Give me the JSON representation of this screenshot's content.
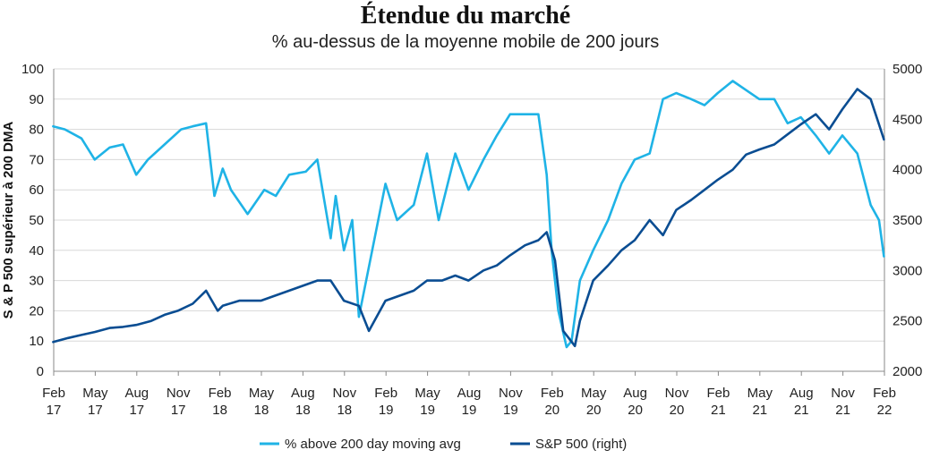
{
  "chart_data": {
    "type": "line",
    "title": "Étendue du marché",
    "subtitle": "% au-dessus de la moyenne mobile de 200 jours",
    "ylabel_left": "S & P 500 supérieur à 200 DMA",
    "ylim_left": [
      0,
      100
    ],
    "yticks_left": [
      "0",
      "10",
      "20",
      "30",
      "40",
      "50",
      "60",
      "70",
      "80",
      "90",
      "100"
    ],
    "ylim_right": [
      2000,
      5000
    ],
    "yticks_right": [
      "2000",
      "2500",
      "3000",
      "3500",
      "4000",
      "4500",
      "5000"
    ],
    "xlim": [
      2017.083,
      2022.083
    ],
    "xticks": [
      {
        "month": "Feb",
        "year": "17"
      },
      {
        "month": "May",
        "year": "17"
      },
      {
        "month": "Aug",
        "year": "17"
      },
      {
        "month": "Nov",
        "year": "17"
      },
      {
        "month": "Feb",
        "year": "18"
      },
      {
        "month": "May",
        "year": "18"
      },
      {
        "month": "Aug",
        "year": "18"
      },
      {
        "month": "Nov",
        "year": "18"
      },
      {
        "month": "Feb",
        "year": "19"
      },
      {
        "month": "May",
        "year": "19"
      },
      {
        "month": "Aug",
        "year": "19"
      },
      {
        "month": "Nov",
        "year": "19"
      },
      {
        "month": "Feb",
        "year": "20"
      },
      {
        "month": "May",
        "year": "20"
      },
      {
        "month": "Aug",
        "year": "20"
      },
      {
        "month": "Nov",
        "year": "20"
      },
      {
        "month": "Feb",
        "year": "21"
      },
      {
        "month": "May",
        "year": "21"
      },
      {
        "month": "Aug",
        "year": "21"
      },
      {
        "month": "Nov",
        "year": "21"
      },
      {
        "month": "Feb",
        "year": "22"
      }
    ],
    "grid": true,
    "legend_position": "bottom",
    "series": [
      {
        "name": "% above 200 day moving avg",
        "axis": "left",
        "color": "#1fb3e6",
        "x": [
          2017.08,
          2017.15,
          2017.25,
          2017.33,
          2017.42,
          2017.5,
          2017.58,
          2017.65,
          2017.75,
          2017.85,
          2017.92,
          2018.0,
          2018.05,
          2018.1,
          2018.15,
          2018.25,
          2018.35,
          2018.42,
          2018.5,
          2018.6,
          2018.67,
          2018.75,
          2018.78,
          2018.83,
          2018.88,
          2018.92,
          2019.0,
          2019.08,
          2019.15,
          2019.25,
          2019.33,
          2019.4,
          2019.5,
          2019.58,
          2019.67,
          2019.75,
          2019.83,
          2019.92,
          2020.0,
          2020.05,
          2020.08,
          2020.12,
          2020.17,
          2020.2,
          2020.25,
          2020.33,
          2020.42,
          2020.5,
          2020.58,
          2020.67,
          2020.75,
          2020.83,
          2020.92,
          2021.0,
          2021.08,
          2021.17,
          2021.25,
          2021.33,
          2021.42,
          2021.5,
          2021.58,
          2021.67,
          2021.75,
          2021.83,
          2021.92,
          2022.0,
          2022.05,
          2022.08
        ],
        "y": [
          81,
          80,
          77,
          70,
          74,
          75,
          65,
          70,
          75,
          80,
          81,
          82,
          58,
          67,
          60,
          52,
          60,
          58,
          65,
          66,
          70,
          44,
          58,
          40,
          50,
          18,
          40,
          62,
          50,
          55,
          72,
          50,
          72,
          60,
          70,
          78,
          85,
          85,
          85,
          65,
          40,
          20,
          8,
          10,
          30,
          40,
          50,
          62,
          70,
          72,
          90,
          92,
          90,
          88,
          92,
          96,
          93,
          90,
          90,
          82,
          84,
          78,
          72,
          78,
          72,
          55,
          50,
          38
        ]
      },
      {
        "name": "S&P 500 (right)",
        "axis": "right",
        "color": "#0a4d92",
        "x": [
          2017.08,
          2017.17,
          2017.25,
          2017.33,
          2017.42,
          2017.5,
          2017.58,
          2017.67,
          2017.75,
          2017.83,
          2017.92,
          2018.0,
          2018.07,
          2018.1,
          2018.2,
          2018.33,
          2018.5,
          2018.67,
          2018.75,
          2018.83,
          2018.92,
          2018.98,
          2019.08,
          2019.25,
          2019.33,
          2019.42,
          2019.5,
          2019.58,
          2019.67,
          2019.75,
          2019.83,
          2019.92,
          2020.0,
          2020.05,
          2020.1,
          2020.15,
          2020.22,
          2020.25,
          2020.33,
          2020.42,
          2020.5,
          2020.58,
          2020.67,
          2020.75,
          2020.83,
          2020.92,
          2021.0,
          2021.08,
          2021.17,
          2021.25,
          2021.33,
          2021.42,
          2021.5,
          2021.58,
          2021.67,
          2021.75,
          2021.83,
          2021.92,
          2022.0,
          2022.05,
          2022.08
        ],
        "y": [
          2290,
          2330,
          2360,
          2390,
          2430,
          2440,
          2460,
          2500,
          2560,
          2600,
          2670,
          2800,
          2600,
          2650,
          2700,
          2700,
          2800,
          2900,
          2900,
          2700,
          2650,
          2400,
          2700,
          2800,
          2900,
          2900,
          2950,
          2900,
          3000,
          3050,
          3150,
          3250,
          3300,
          3380,
          3100,
          2400,
          2250,
          2500,
          2900,
          3050,
          3200,
          3300,
          3500,
          3350,
          3600,
          3700,
          3800,
          3900,
          4000,
          4150,
          4200,
          4250,
          4350,
          4450,
          4550,
          4400,
          4600,
          4800,
          4700,
          4450,
          4300
        ]
      }
    ]
  }
}
